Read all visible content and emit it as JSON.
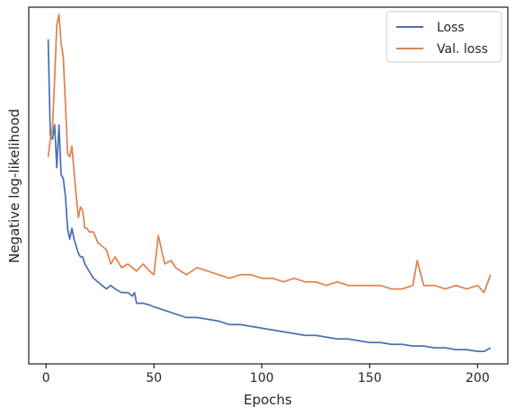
{
  "chart_data": {
    "type": "line",
    "xlabel": "Epochs",
    "ylabel": "Negative log-likelihood",
    "xlim": [
      -8,
      214
    ],
    "ylim": [
      0,
      100
    ],
    "xticks": [
      0,
      50,
      100,
      150,
      200
    ],
    "grid": false,
    "legend_position": "top-right",
    "series": [
      {
        "name": "Loss",
        "color": "#4c72b0",
        "x": [
          1,
          2,
          3,
          4,
          5,
          6,
          7,
          8,
          9,
          10,
          11,
          12,
          13,
          14,
          15,
          16,
          17,
          18,
          19,
          20,
          22,
          24,
          26,
          28,
          30,
          32,
          35,
          38,
          40,
          41,
          42,
          45,
          48,
          50,
          55,
          60,
          65,
          70,
          75,
          80,
          85,
          90,
          95,
          100,
          105,
          110,
          115,
          120,
          125,
          130,
          135,
          140,
          145,
          150,
          155,
          160,
          165,
          170,
          175,
          180,
          185,
          190,
          195,
          200,
          203,
          206
        ],
        "values": [
          91,
          64,
          63,
          67,
          55,
          67,
          53,
          52,
          47,
          38,
          35,
          38,
          35,
          33,
          31,
          30,
          30,
          28,
          27,
          26,
          24,
          23,
          22,
          21,
          22,
          21,
          20,
          20,
          19,
          20,
          17,
          17,
          16.5,
          16,
          15,
          14,
          13,
          13,
          12.5,
          12,
          11,
          11,
          10.5,
          10,
          9.5,
          9,
          8.5,
          8,
          8,
          7.5,
          7,
          7,
          6.5,
          6,
          6,
          5.5,
          5.5,
          5,
          5,
          4.5,
          4.5,
          4,
          4,
          3.5,
          3.5,
          4.5
        ]
      },
      {
        "name": "Val. loss",
        "color": "#dd8452",
        "x": [
          1,
          2,
          3,
          4,
          5,
          6,
          7,
          8,
          9,
          10,
          11,
          12,
          13,
          14,
          15,
          16,
          17,
          18,
          19,
          20,
          22,
          24,
          26,
          28,
          30,
          32,
          35,
          38,
          40,
          42,
          45,
          48,
          50,
          52,
          55,
          58,
          60,
          65,
          70,
          75,
          80,
          85,
          90,
          95,
          100,
          105,
          110,
          115,
          120,
          125,
          130,
          135,
          140,
          145,
          150,
          155,
          160,
          165,
          170,
          172,
          175,
          180,
          185,
          190,
          195,
          200,
          203,
          206
        ],
        "values": [
          58,
          63,
          66,
          80,
          95,
          98,
          90,
          86,
          73,
          59,
          58,
          61,
          54,
          47,
          41,
          44,
          43,
          38,
          38,
          37,
          37,
          34,
          33,
          32,
          28,
          30,
          27,
          28,
          27,
          26,
          28,
          26,
          25,
          36,
          28,
          29,
          27,
          25,
          27,
          26,
          25,
          24,
          25,
          25,
          24,
          24,
          23,
          24,
          23,
          23,
          22,
          23,
          22,
          22,
          22,
          22,
          21,
          21,
          22,
          29,
          22,
          22,
          21,
          22,
          21,
          22,
          20,
          25
        ]
      }
    ]
  }
}
